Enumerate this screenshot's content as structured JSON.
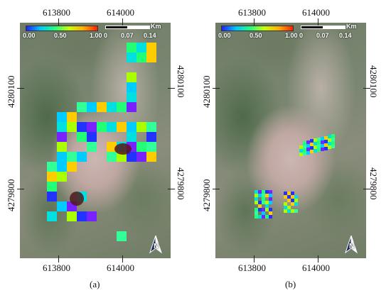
{
  "panels": [
    {
      "caption": "(a)",
      "x_ticks": [
        "613800",
        "614000",
        "613800",
        "614000"
      ],
      "y_ticks_left": [
        "4280100",
        "4279800"
      ],
      "y_ticks_right": [
        "4280100",
        "4279800"
      ]
    },
    {
      "caption": "(b)",
      "x_ticks": [
        "613800",
        "614000",
        "613800",
        "614000"
      ],
      "y_ticks_left": [
        "4280100",
        "4279800"
      ],
      "y_ticks_right": [
        "4280100",
        "4279800"
      ]
    }
  ],
  "legend": {
    "min_label": "0.00",
    "mid_label": "0.50",
    "max_label": "1.00",
    "colors": [
      "#2020ff",
      "#00c8ff",
      "#20ff80",
      "#c8ff00",
      "#ffb000",
      "#ff2000"
    ]
  },
  "scalebar": {
    "unit": "Km",
    "labels": [
      "0",
      "0.07",
      "0.14"
    ]
  },
  "north_arrow": {
    "letter": "N",
    "icon": "north-arrow-icon"
  }
}
